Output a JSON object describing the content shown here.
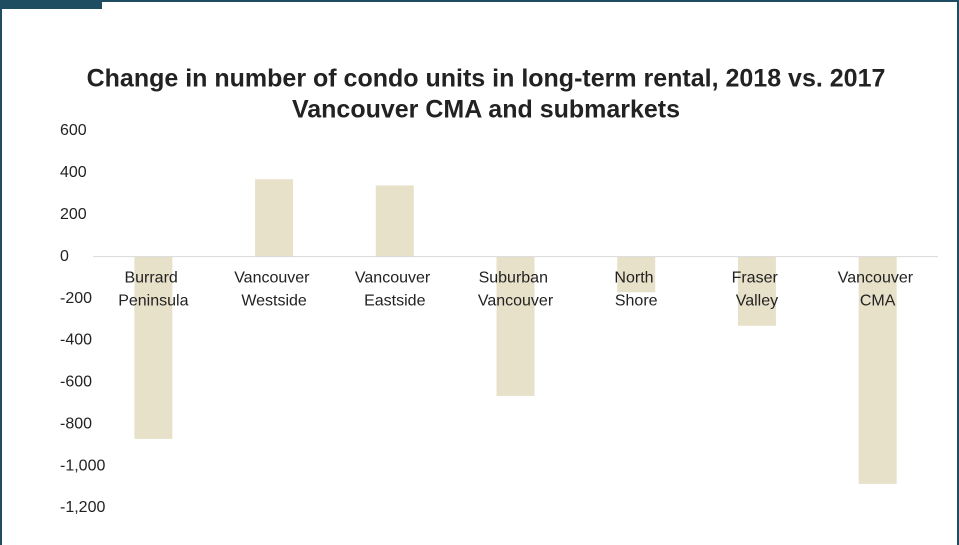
{
  "chart_data": {
    "type": "bar",
    "title": "Change in number of condo units in long-term rental, 2018 vs. 2017",
    "subtitle": "Vancouver CMA and submarkets",
    "categories": [
      "Burrard Peninsula",
      "Vancouver Westside",
      "Vancouver Eastside",
      "Suburban Vancouver",
      "North Shore",
      "Fraser Valley",
      "Vancouver CMA"
    ],
    "values": [
      -870,
      370,
      340,
      -665,
      -170,
      -330,
      -1085
    ],
    "color": "#e8e1c9",
    "ylim": [
      -1200,
      600
    ],
    "yticks": [
      600,
      400,
      200,
      0,
      -200,
      -400,
      -600,
      -800,
      {
        "value": -1000,
        "label": "-1,000"
      },
      {
        "value": -1200,
        "label": "-1,200"
      }
    ],
    "grid": false
  }
}
